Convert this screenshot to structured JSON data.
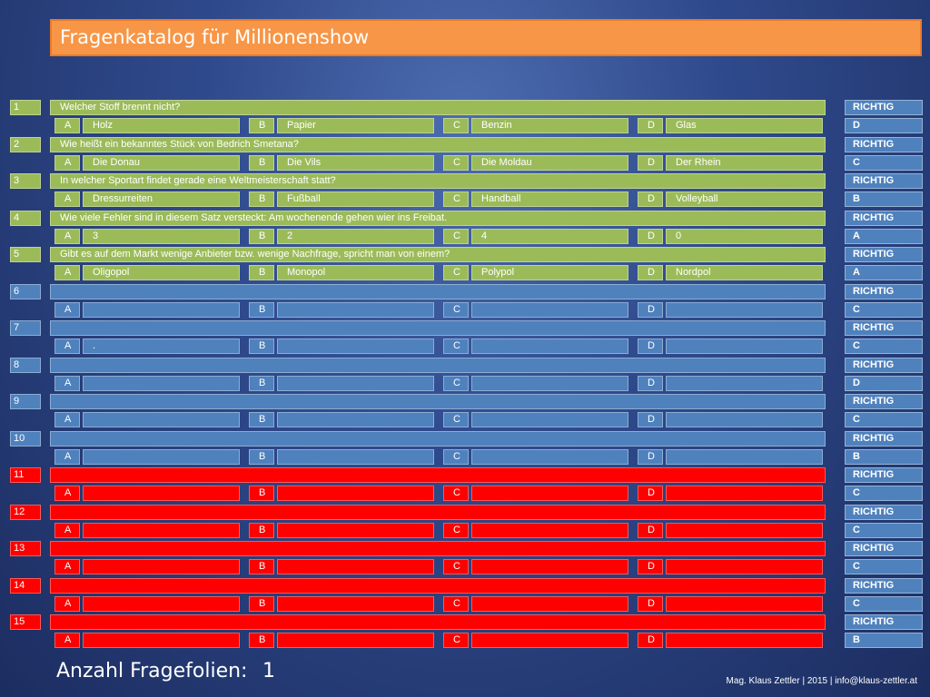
{
  "title": "Fragenkatalog für Millionenshow",
  "footer": {
    "label": "Anzahl Fragefolien:",
    "count": "1",
    "credit": "Mag. Klaus Zettler | 2015 | info@klaus-zettler.at"
  },
  "colors": {
    "green": "#9bbb59",
    "blue": "#4f81bd",
    "red": "#ff0000",
    "title": "#f79646"
  },
  "letters": [
    "A",
    "B",
    "C",
    "D"
  ],
  "richtig_label": "RICHTIG",
  "questions": [
    {
      "num": "1",
      "color": "green",
      "text": "Welcher Stoff brennt nicht?",
      "answers": [
        "Holz",
        "Papier",
        "Benzin",
        "Glas"
      ],
      "correct": "D"
    },
    {
      "num": "2",
      "color": "green",
      "text": "Wie heißt ein bekanntes Stück von Bedrich Smetana?",
      "answers": [
        "Die Donau",
        "Die Vils",
        "Die Moldau",
        "Der Rhein"
      ],
      "correct": "C"
    },
    {
      "num": "3",
      "color": "green",
      "text": "In welcher Sportart  findet  gerade eine Weltmeisterschaft statt?",
      "answers": [
        "Dressurreiten",
        "Fußball",
        "Handball",
        "Volleyball"
      ],
      "correct": "B"
    },
    {
      "num": "4",
      "color": "green",
      "text": "Wie viele Fehler sind in diesem Satz versteckt: Am wochenende gehen wier ins Freibat.",
      "answers": [
        "3",
        "2",
        "4",
        "0"
      ],
      "correct": "A"
    },
    {
      "num": "5",
      "color": "green",
      "text": "Gibt es auf dem Markt wenige Anbieter bzw. wenige Nachfrage, spricht man von einem?",
      "answers": [
        "Oligopol",
        "Monopol",
        "Polypol",
        "Nordpol"
      ],
      "correct": "A"
    },
    {
      "num": "6",
      "color": "blue",
      "text": "",
      "answers": [
        "",
        "",
        "",
        ""
      ],
      "correct": "C"
    },
    {
      "num": "7",
      "color": "blue",
      "text": "",
      "answers": [
        ".",
        "",
        "",
        ""
      ],
      "correct": "C"
    },
    {
      "num": "8",
      "color": "blue",
      "text": "",
      "answers": [
        "",
        "",
        "",
        ""
      ],
      "correct": "D"
    },
    {
      "num": "9",
      "color": "blue",
      "text": "",
      "answers": [
        "",
        "",
        "",
        ""
      ],
      "correct": "C"
    },
    {
      "num": "10",
      "color": "blue",
      "text": "",
      "answers": [
        "",
        "",
        "",
        ""
      ],
      "correct": "B"
    },
    {
      "num": "11",
      "color": "red",
      "text": "",
      "answers": [
        "",
        "",
        "",
        ""
      ],
      "correct": "C"
    },
    {
      "num": "12",
      "color": "red",
      "text": "",
      "answers": [
        "",
        "",
        "",
        ""
      ],
      "correct": "C"
    },
    {
      "num": "13",
      "color": "red",
      "text": "",
      "answers": [
        "",
        "",
        "",
        ""
      ],
      "correct": "C"
    },
    {
      "num": "14",
      "color": "red",
      "text": "",
      "answers": [
        "",
        "",
        "",
        ""
      ],
      "correct": "C"
    },
    {
      "num": "15",
      "color": "red",
      "text": "",
      "answers": [
        "",
        "",
        "",
        ""
      ],
      "correct": "B"
    }
  ]
}
